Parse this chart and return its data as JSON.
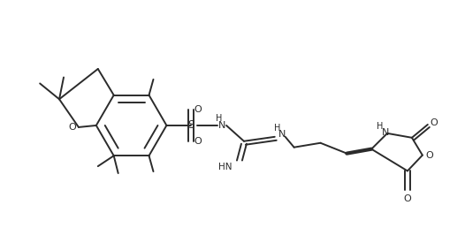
{
  "bg_color": "#ffffff",
  "line_color": "#2b2b2b",
  "line_width": 1.4,
  "figsize": [
    5.26,
    2.75
  ],
  "dpi": 100,
  "atoms": {
    "O_label": "O",
    "S_label": "S",
    "N1_label": "H\nN",
    "NH_top": "H",
    "NH2": "HN",
    "O_top1": "O",
    "O_top2": "O",
    "O_bot": "O",
    "O_ring": "O",
    "HN_ring": "H\nN"
  }
}
